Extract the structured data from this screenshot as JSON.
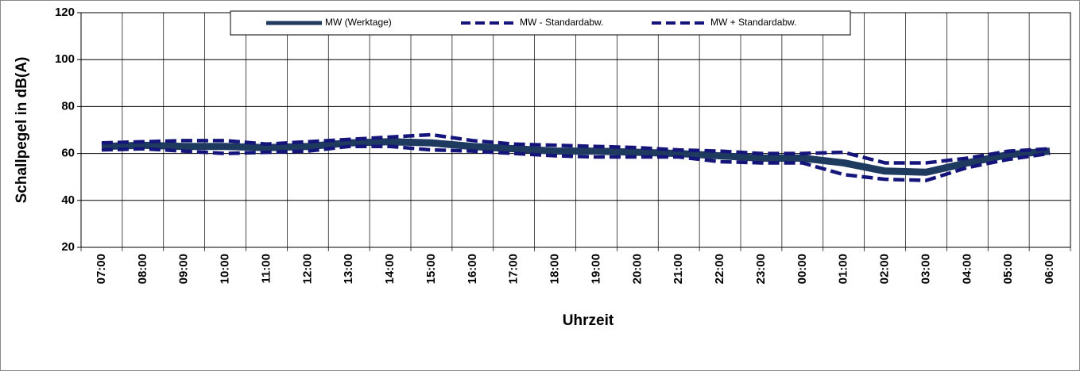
{
  "chart_data": {
    "type": "line",
    "x_label": "Uhrzeit",
    "y_label": "Schallpegel in dB(A)",
    "categories": [
      "07:00",
      "08:00",
      "09:00",
      "10:00",
      "11:00",
      "12:00",
      "13:00",
      "14:00",
      "15:00",
      "16:00",
      "17:00",
      "18:00",
      "19:00",
      "20:00",
      "21:00",
      "22:00",
      "23:00",
      "00:00",
      "01:00",
      "02:00",
      "03:00",
      "04:00",
      "05:00",
      "06:00"
    ],
    "series": [
      {
        "name": "MW (Werktage)",
        "color": "#1f3a5f",
        "style": "solid",
        "values": [
          63,
          63.5,
          63,
          63,
          62.5,
          63,
          64.5,
          65,
          64.5,
          63,
          62,
          61,
          61,
          60.5,
          60,
          59,
          58,
          58,
          56,
          52.5,
          52,
          56,
          59.5,
          61
        ]
      },
      {
        "name": "MW - Standardabw.",
        "color": "#14147a",
        "style": "dashed",
        "values": [
          61.5,
          62,
          61,
          60,
          60.5,
          61,
          63,
          63,
          61.5,
          61,
          60,
          59,
          58.5,
          58.5,
          58.5,
          56.5,
          56,
          56,
          51,
          49,
          48.5,
          54,
          57.5,
          60
        ]
      },
      {
        "name": "MW + Standardabw.",
        "color": "#14147a",
        "style": "dashed",
        "values": [
          64.5,
          65,
          65.5,
          65.5,
          64,
          65,
          66,
          67,
          68,
          65.5,
          64,
          63.5,
          63,
          62.5,
          61.5,
          61,
          60,
          60,
          60.5,
          56,
          56,
          58,
          61,
          62
        ]
      }
    ],
    "ylim": [
      20,
      120
    ],
    "yticks": [
      20,
      40,
      60,
      80,
      100,
      120
    ],
    "grid": true
  }
}
